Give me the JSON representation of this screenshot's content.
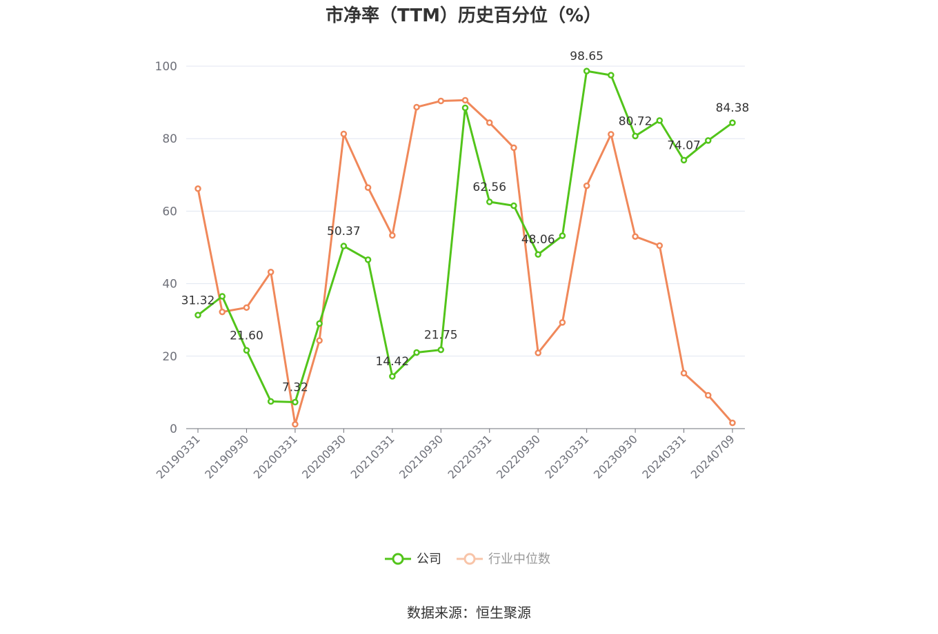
{
  "chart_data": {
    "type": "line",
    "title": "市净率（TTM）历史百分位（%）",
    "ylim": [
      0,
      100
    ],
    "yticks": [
      0,
      20,
      40,
      60,
      80,
      100
    ],
    "grid": true,
    "legend_placement": "bottom-center",
    "x": [
      "20190331",
      "20190630",
      "20190930",
      "20191231",
      "20200331",
      "20200630",
      "20200930",
      "20201231",
      "20210331",
      "20210630",
      "20210930",
      "20211231",
      "20220331",
      "20220630",
      "20220930",
      "20221231",
      "20230331",
      "20230630",
      "20230930",
      "20231231",
      "20240331",
      "20240630",
      "20240709"
    ],
    "xtick_labels": [
      "20190331",
      "20190930",
      "20200331",
      "20200930",
      "20210331",
      "20210930",
      "20220331",
      "20220930",
      "20230331",
      "20230930",
      "20240331",
      "20240709"
    ],
    "series": [
      {
        "name": "公司",
        "color": "#52c41a",
        "values": [
          31.32,
          36.5,
          21.6,
          7.5,
          7.32,
          29.0,
          50.37,
          46.6,
          14.42,
          21.0,
          21.75,
          88.5,
          62.56,
          61.5,
          48.06,
          53.2,
          98.65,
          97.5,
          80.72,
          85.0,
          74.07,
          79.5,
          84.38
        ],
        "labels": {
          "0": "31.32",
          "2": "21.60",
          "4": "7.32",
          "6": "50.37",
          "8": "14.42",
          "10": "21.75",
          "12": "62.56",
          "14": "48.06",
          "16": "98.65",
          "18": "80.72",
          "20": "74.07",
          "22": "84.38"
        }
      },
      {
        "name": "行业中位数",
        "color": "#f0885a",
        "values": [
          66.2,
          32.2,
          33.4,
          43.2,
          1.2,
          24.3,
          81.3,
          66.5,
          53.3,
          88.7,
          90.4,
          90.6,
          84.4,
          77.5,
          20.9,
          29.3,
          67.0,
          81.2,
          53.0,
          50.5,
          15.3,
          9.2,
          1.6
        ],
        "labels": {}
      }
    ]
  },
  "legend": {
    "items": [
      "公司",
      "行业中位数"
    ]
  },
  "source": "数据来源：恒生聚源"
}
